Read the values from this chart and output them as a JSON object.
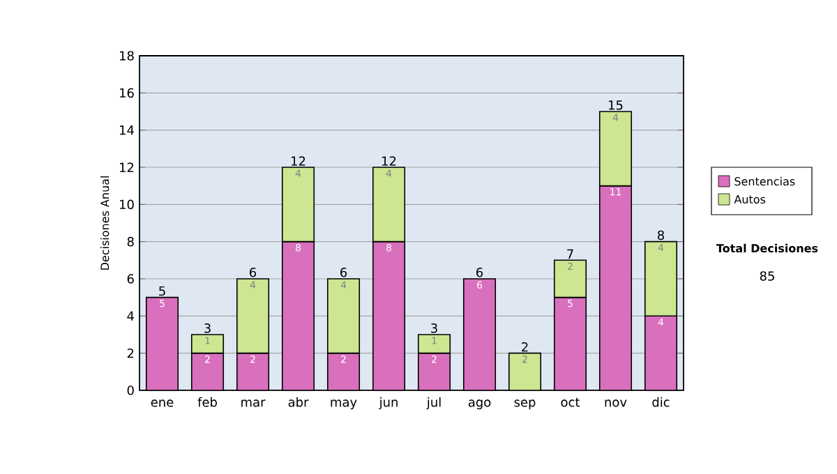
{
  "chart_data": {
    "type": "bar",
    "stacked": true,
    "ylabel": "Decisiones Anual",
    "categories": [
      "ene",
      "feb",
      "mar",
      "abr",
      "may",
      "jun",
      "jul",
      "ago",
      "sep",
      "oct",
      "nov",
      "dic"
    ],
    "series": [
      {
        "name": "Sentencias",
        "color": "#d970be",
        "values": [
          5,
          2,
          2,
          8,
          2,
          8,
          2,
          6,
          null,
          5,
          11,
          4
        ]
      },
      {
        "name": "Autos",
        "color": "#cde692",
        "values": [
          null,
          1,
          4,
          4,
          4,
          4,
          1,
          null,
          2,
          2,
          4,
          4
        ]
      }
    ],
    "totals": [
      "5",
      "3",
      "6",
      "12",
      "6",
      "12",
      "3",
      "6",
      "2",
      "7",
      "15",
      "8"
    ],
    "data_labels": true,
    "ylim": [
      0,
      18
    ],
    "yticks": [
      0,
      2,
      4,
      6,
      8,
      10,
      12,
      14,
      16,
      18
    ],
    "grid": "y",
    "legend": "right",
    "annotations": [
      "Total Decisiones",
      "85"
    ]
  }
}
